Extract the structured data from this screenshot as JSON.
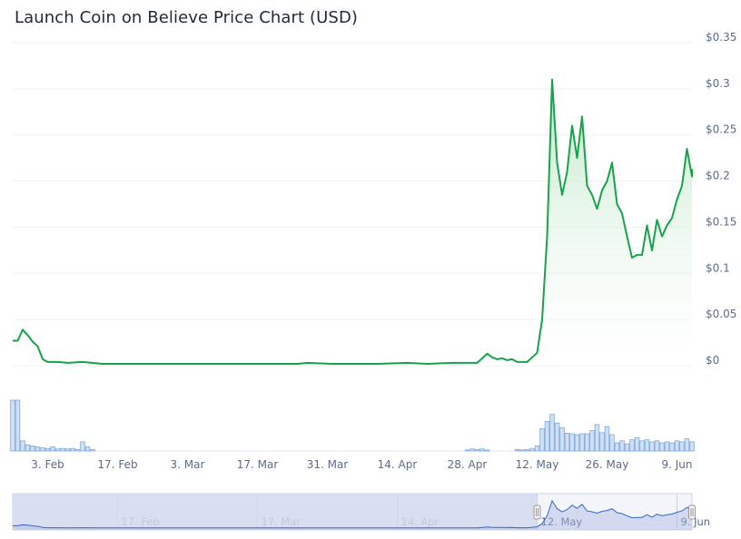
{
  "title": "Launch Coin on Believe Price Chart (USD)",
  "colors": {
    "line": "#16a34a",
    "area_top": "#b7e4c0",
    "volume_fill": "#cfe0f5",
    "volume_stroke": "#7da7d9",
    "navigator_fill": "#d4d9ee",
    "navigator_line": "#3366cc",
    "grid": "#eef0f4"
  },
  "chart_data": {
    "type": "line",
    "title": "Launch Coin on Believe Price Chart (USD)",
    "x_start": "2025-01-27",
    "x_end": "2025-06-12",
    "x_ticks": [
      "3. Feb",
      "17. Feb",
      "3. Mar",
      "17. Mar",
      "31. Mar",
      "14. Apr",
      "28. Apr",
      "12. May",
      "26. May",
      "9. Jun"
    ],
    "y_ticks": [
      "$0",
      "$0.05",
      "$0.1",
      "$0.15",
      "$0.2",
      "$0.25",
      "$0.3",
      "$0.35"
    ],
    "ylim": [
      0,
      0.35
    ],
    "series": [
      {
        "points": [
          [
            "2025-01-27",
            0.027
          ],
          [
            "2025-01-28",
            0.027
          ],
          [
            "2025-01-29",
            0.039
          ],
          [
            "2025-01-30",
            0.033
          ],
          [
            "2025-01-31",
            0.026
          ],
          [
            "2025-02-01",
            0.021
          ],
          [
            "2025-02-02",
            0.007
          ],
          [
            "2025-02-03",
            0.004
          ],
          [
            "2025-02-05",
            0.004
          ],
          [
            "2025-02-07",
            0.003
          ],
          [
            "2025-02-10",
            0.004
          ],
          [
            "2025-02-14",
            0.002
          ],
          [
            "2025-02-20",
            0.002
          ],
          [
            "2025-03-01",
            0.002
          ],
          [
            "2025-03-15",
            0.002
          ],
          [
            "2025-03-25",
            0.002
          ],
          [
            "2025-03-27",
            0.003
          ],
          [
            "2025-04-01",
            0.002
          ],
          [
            "2025-04-10",
            0.002
          ],
          [
            "2025-04-16",
            0.003
          ],
          [
            "2025-04-20",
            0.002
          ],
          [
            "2025-04-25",
            0.003
          ],
          [
            "2025-04-28",
            0.003
          ],
          [
            "2025-04-30",
            0.003
          ],
          [
            "2025-05-01",
            0.008
          ],
          [
            "2025-05-02",
            0.013
          ],
          [
            "2025-05-03",
            0.009
          ],
          [
            "2025-05-04",
            0.007
          ],
          [
            "2025-05-05",
            0.008
          ],
          [
            "2025-05-06",
            0.006
          ],
          [
            "2025-05-07",
            0.007
          ],
          [
            "2025-05-08",
            0.004
          ],
          [
            "2025-05-09",
            0.004
          ],
          [
            "2025-05-10",
            0.004
          ],
          [
            "2025-05-11",
            0.009
          ],
          [
            "2025-05-12",
            0.014
          ],
          [
            "2025-05-13",
            0.05
          ],
          [
            "2025-05-14",
            0.14
          ],
          [
            "2025-05-15",
            0.31
          ],
          [
            "2025-05-16",
            0.22
          ],
          [
            "2025-05-17",
            0.185
          ],
          [
            "2025-05-18",
            0.21
          ],
          [
            "2025-05-19",
            0.26
          ],
          [
            "2025-05-20",
            0.225
          ],
          [
            "2025-05-21",
            0.27
          ],
          [
            "2025-05-22",
            0.195
          ],
          [
            "2025-05-23",
            0.185
          ],
          [
            "2025-05-24",
            0.17
          ],
          [
            "2025-05-25",
            0.19
          ],
          [
            "2025-05-26",
            0.2
          ],
          [
            "2025-05-27",
            0.22
          ],
          [
            "2025-05-28",
            0.175
          ],
          [
            "2025-05-29",
            0.165
          ],
          [
            "2025-05-30",
            0.14
          ],
          [
            "2025-05-31",
            0.117
          ],
          [
            "2025-06-01",
            0.12
          ],
          [
            "2025-06-02",
            0.12
          ],
          [
            "2025-06-03",
            0.152
          ],
          [
            "2025-06-04",
            0.125
          ],
          [
            "2025-06-05",
            0.158
          ],
          [
            "2025-06-06",
            0.14
          ],
          [
            "2025-06-07",
            0.152
          ],
          [
            "2025-06-08",
            0.16
          ],
          [
            "2025-06-09",
            0.18
          ],
          [
            "2025-06-10",
            0.195
          ],
          [
            "2025-06-11",
            0.235
          ],
          [
            "2025-06-12",
            0.205
          ],
          [
            "2025-06-13",
            0.213
          ]
        ]
      }
    ],
    "volume": [
      [
        "2025-01-27",
        1.0
      ],
      [
        "2025-01-28",
        1.0
      ],
      [
        "2025-01-29",
        0.2
      ],
      [
        "2025-01-30",
        0.12
      ],
      [
        "2025-01-31",
        0.1
      ],
      [
        "2025-02-01",
        0.08
      ],
      [
        "2025-02-02",
        0.06
      ],
      [
        "2025-02-03",
        0.05
      ],
      [
        "2025-02-04",
        0.08
      ],
      [
        "2025-02-05",
        0.04
      ],
      [
        "2025-02-06",
        0.05
      ],
      [
        "2025-02-07",
        0.04
      ],
      [
        "2025-02-08",
        0.05
      ],
      [
        "2025-02-09",
        0.03
      ],
      [
        "2025-02-10",
        0.18
      ],
      [
        "2025-02-11",
        0.08
      ],
      [
        "2025-02-12",
        0.03
      ],
      [
        "2025-04-28",
        0.02
      ],
      [
        "2025-04-29",
        0.04
      ],
      [
        "2025-04-30",
        0.03
      ],
      [
        "2025-05-01",
        0.04
      ],
      [
        "2025-05-02",
        0.02
      ],
      [
        "2025-05-08",
        0.03
      ],
      [
        "2025-05-09",
        0.02
      ],
      [
        "2025-05-10",
        0.03
      ],
      [
        "2025-05-11",
        0.05
      ],
      [
        "2025-05-12",
        0.1
      ],
      [
        "2025-05-13",
        0.44
      ],
      [
        "2025-05-14",
        0.58
      ],
      [
        "2025-05-15",
        0.72
      ],
      [
        "2025-05-16",
        0.55
      ],
      [
        "2025-05-17",
        0.46
      ],
      [
        "2025-05-18",
        0.35
      ],
      [
        "2025-05-19",
        0.34
      ],
      [
        "2025-05-20",
        0.32
      ],
      [
        "2025-05-21",
        0.34
      ],
      [
        "2025-05-22",
        0.34
      ],
      [
        "2025-05-23",
        0.4
      ],
      [
        "2025-05-24",
        0.52
      ],
      [
        "2025-05-25",
        0.36
      ],
      [
        "2025-05-26",
        0.48
      ],
      [
        "2025-05-27",
        0.32
      ],
      [
        "2025-05-28",
        0.16
      ],
      [
        "2025-05-29",
        0.2
      ],
      [
        "2025-05-30",
        0.14
      ],
      [
        "2025-05-31",
        0.22
      ],
      [
        "2025-06-01",
        0.26
      ],
      [
        "2025-06-02",
        0.2
      ],
      [
        "2025-06-03",
        0.22
      ],
      [
        "2025-06-04",
        0.18
      ],
      [
        "2025-06-05",
        0.2
      ],
      [
        "2025-06-06",
        0.16
      ],
      [
        "2025-06-07",
        0.18
      ],
      [
        "2025-06-08",
        0.16
      ],
      [
        "2025-06-09",
        0.2
      ],
      [
        "2025-06-10",
        0.18
      ],
      [
        "2025-06-11",
        0.24
      ],
      [
        "2025-06-12",
        0.18
      ],
      [
        "2025-06-13",
        0.26
      ],
      [
        "2025-06-14",
        0.32
      ],
      [
        "2025-06-15",
        0.3
      ],
      [
        "2025-06-16",
        0.28
      ],
      [
        "2025-06-17",
        0.26
      ],
      [
        "2025-06-18",
        0.26
      ]
    ],
    "navigator": {
      "x_ticks": [
        "17. Feb",
        "17. Mar",
        "14. Apr",
        "12. May",
        "9. Jun"
      ],
      "selected_from": "2025-05-12",
      "selected_to": "2025-06-12"
    },
    "grid": true,
    "legend": "none"
  }
}
